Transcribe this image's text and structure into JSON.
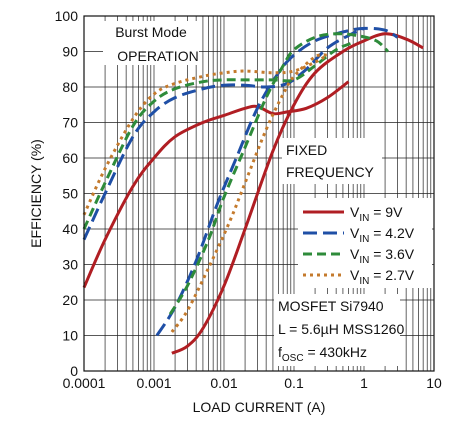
{
  "chart_data": {
    "type": "line",
    "xlabel": "LOAD CURRENT (A)",
    "ylabel": "EFFICIENCY (%)",
    "x_scale": "log",
    "xlim": [
      0.0001,
      10
    ],
    "ylim": [
      0,
      100
    ],
    "x_ticks": [
      0.0001,
      0.001,
      0.01,
      0.1,
      1,
      10
    ],
    "x_tick_labels": [
      "0.0001",
      "0.001",
      "0.01",
      "0.1",
      "1",
      "10"
    ],
    "y_ticks": [
      0,
      10,
      20,
      30,
      40,
      50,
      60,
      70,
      80,
      90,
      100
    ],
    "y_tick_labels": [
      "0",
      "10",
      "20",
      "30",
      "40",
      "50",
      "60",
      "70",
      "80",
      "90",
      "100"
    ],
    "grid": true,
    "legend_position": "right",
    "annotations": {
      "burst_mode_1": "Burst Mode",
      "burst_mode_2": "OPERATION",
      "fixed_freq_1": "FIXED",
      "fixed_freq_2": "FREQUENCY",
      "mosfet": "MOSFET Si7940",
      "inductor": "L = 5.6µH MSS1260",
      "fosc_prefix": "f",
      "fosc_sub": "OSC",
      "fosc_value": " = 430kHz"
    },
    "series": [
      {
        "name": "V_IN = 9V",
        "label_main": "V",
        "label_sub": "IN",
        "label_value": " = 9V",
        "color": "#b01e23",
        "dash": "solid",
        "burst_mode": [
          [
            0.0001,
            23.5
          ],
          [
            0.0002,
            37
          ],
          [
            0.0005,
            52
          ],
          [
            0.001,
            60
          ],
          [
            0.002,
            66
          ],
          [
            0.005,
            70
          ],
          [
            0.01,
            72
          ],
          [
            0.02,
            74
          ],
          [
            0.03,
            74.5
          ],
          [
            0.05,
            72.5
          ],
          [
            0.08,
            73
          ],
          [
            0.15,
            74
          ],
          [
            0.3,
            77
          ],
          [
            0.6,
            81.5
          ]
        ],
        "fixed_frequency": [
          [
            0.0018,
            5
          ],
          [
            0.003,
            7
          ],
          [
            0.005,
            12
          ],
          [
            0.01,
            24
          ],
          [
            0.02,
            40
          ],
          [
            0.05,
            62
          ],
          [
            0.1,
            75
          ],
          [
            0.2,
            84
          ],
          [
            0.5,
            90
          ],
          [
            1,
            93
          ],
          [
            2,
            95
          ],
          [
            4,
            93.5
          ],
          [
            7,
            91
          ]
        ]
      },
      {
        "name": "V_IN = 4.2V",
        "label_main": "V",
        "label_sub": "IN",
        "label_value": " = 4.2V",
        "color": "#1f4fa6",
        "dash": "long",
        "burst_mode": [
          [
            0.0001,
            37
          ],
          [
            0.0002,
            50
          ],
          [
            0.0005,
            66
          ],
          [
            0.001,
            73
          ],
          [
            0.002,
            77
          ],
          [
            0.005,
            79.5
          ],
          [
            0.01,
            80.5
          ],
          [
            0.02,
            80.5
          ],
          [
            0.04,
            80
          ],
          [
            0.08,
            81
          ],
          [
            0.15,
            85
          ],
          [
            0.3,
            91
          ],
          [
            0.6,
            94.5
          ],
          [
            1,
            96.5
          ]
        ],
        "fixed_frequency": [
          [
            0.0011,
            10
          ],
          [
            0.002,
            18
          ],
          [
            0.004,
            31
          ],
          [
            0.008,
            47
          ],
          [
            0.015,
            60
          ],
          [
            0.03,
            74
          ],
          [
            0.06,
            84
          ],
          [
            0.1,
            89
          ],
          [
            0.2,
            93
          ],
          [
            0.5,
            95.5
          ],
          [
            1,
            96.5
          ],
          [
            2,
            96
          ],
          [
            3,
            94
          ]
        ]
      },
      {
        "name": "V_IN = 3.6V",
        "label_main": "V",
        "label_sub": "IN",
        "label_value": " = 3.6V",
        "color": "#2e8b3a",
        "dash": "medium",
        "burst_mode": [
          [
            0.0001,
            40
          ],
          [
            0.0002,
            53
          ],
          [
            0.0005,
            69
          ],
          [
            0.001,
            76
          ],
          [
            0.002,
            79.5
          ],
          [
            0.005,
            81.5
          ],
          [
            0.01,
            82
          ],
          [
            0.02,
            82
          ],
          [
            0.05,
            82
          ],
          [
            0.1,
            82
          ],
          [
            0.2,
            86
          ],
          [
            0.4,
            90.5
          ],
          [
            0.7,
            92.5
          ]
        ],
        "fixed_frequency": [
          [
            0.0017,
            16
          ],
          [
            0.003,
            24
          ],
          [
            0.006,
            37
          ],
          [
            0.01,
            49
          ],
          [
            0.02,
            63
          ],
          [
            0.04,
            77
          ],
          [
            0.07,
            86
          ],
          [
            0.1,
            90.5
          ],
          [
            0.2,
            94
          ],
          [
            0.4,
            95
          ],
          [
            0.8,
            94.5
          ],
          [
            1.5,
            93
          ],
          [
            2.2,
            90
          ]
        ]
      },
      {
        "name": "V_IN = 2.7V",
        "label_main": "V",
        "label_sub": "IN",
        "label_value": " = 2.7V",
        "color": "#c47a2c",
        "dash": "dotted",
        "burst_mode": [
          [
            0.0001,
            44
          ],
          [
            0.0002,
            57
          ],
          [
            0.0005,
            71
          ],
          [
            0.001,
            78
          ],
          [
            0.002,
            81
          ],
          [
            0.005,
            83
          ],
          [
            0.01,
            84
          ],
          [
            0.02,
            84.5
          ],
          [
            0.05,
            84
          ],
          [
            0.1,
            84.5
          ],
          [
            0.2,
            87
          ],
          [
            0.3,
            89
          ]
        ],
        "fixed_frequency": [
          [
            0.0018,
            11
          ],
          [
            0.003,
            17
          ],
          [
            0.006,
            29
          ],
          [
            0.012,
            42
          ],
          [
            0.02,
            53
          ],
          [
            0.04,
            68
          ],
          [
            0.07,
            78
          ],
          [
            0.1,
            83
          ],
          [
            0.2,
            88.5
          ],
          [
            0.3,
            89
          ]
        ]
      }
    ]
  }
}
